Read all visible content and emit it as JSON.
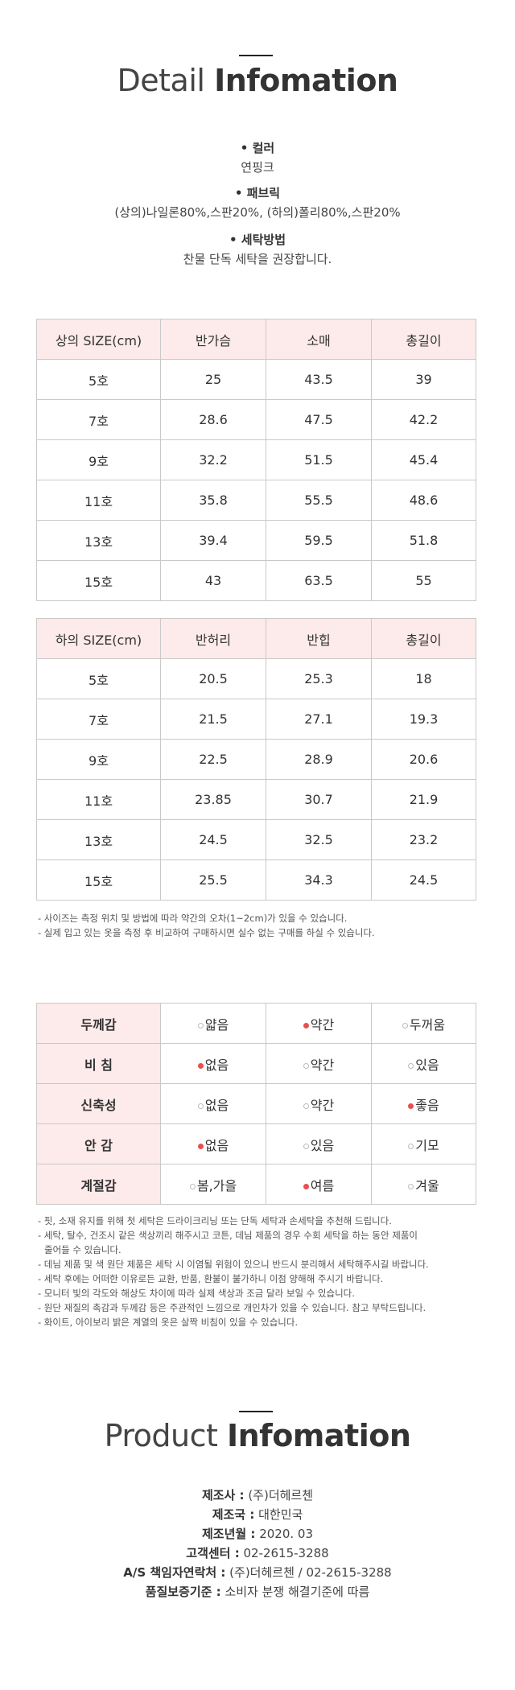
{
  "detail": {
    "title_light": "Detail",
    "title_bold": "Infomation",
    "info": [
      {
        "label": "• 컬러",
        "value": "연핑크"
      },
      {
        "label": "• 패브릭",
        "value": "(상의)나일론80%,스판20%, (하의)폴리80%,스판20%"
      },
      {
        "label": "• 세탁방법",
        "value": "찬물 단독 세탁을 권장합니다."
      }
    ]
  },
  "top_table": {
    "headers": [
      "상의 SIZE(cm)",
      "반가슴",
      "소매",
      "총길이"
    ],
    "rows": [
      [
        "5호",
        "25",
        "43.5",
        "39"
      ],
      [
        "7호",
        "28.6",
        "47.5",
        "42.2"
      ],
      [
        "9호",
        "32.2",
        "51.5",
        "45.4"
      ],
      [
        "11호",
        "35.8",
        "55.5",
        "48.6"
      ],
      [
        "13호",
        "39.4",
        "59.5",
        "51.8"
      ],
      [
        "15호",
        "43",
        "63.5",
        "55"
      ]
    ]
  },
  "bottom_table": {
    "headers": [
      "하의 SIZE(cm)",
      "반허리",
      "반힙",
      "총길이"
    ],
    "rows": [
      [
        "5호",
        "20.5",
        "25.3",
        "18"
      ],
      [
        "7호",
        "21.5",
        "27.1",
        "19.3"
      ],
      [
        "9호",
        "22.5",
        "28.9",
        "20.6"
      ],
      [
        "11호",
        "23.85",
        "30.7",
        "21.9"
      ],
      [
        "13호",
        "24.5",
        "32.5",
        "23.2"
      ],
      [
        "15호",
        "25.5",
        "34.3",
        "24.5"
      ]
    ]
  },
  "size_notes": [
    "- 사이즈는 측정 위치 및 방법에 따라 약간의 오차(1~2cm)가 있을 수 있습니다.",
    "- 실제 입고 있는 옷을 측정 후 비교하여 구매하시면 실수 없는 구매를 하실 수 있습니다."
  ],
  "feel_table": {
    "accent_color": "#e95050",
    "rows": [
      {
        "label": "두께감",
        "options": [
          "얇음",
          "약간",
          "두꺼움"
        ],
        "selected": 1
      },
      {
        "label": "비 침",
        "options": [
          "없음",
          "약간",
          "있음"
        ],
        "selected": 0
      },
      {
        "label": "신축성",
        "options": [
          "없음",
          "약간",
          "좋음"
        ],
        "selected": 2
      },
      {
        "label": "안 감",
        "options": [
          "없음",
          "있음",
          "기모"
        ],
        "selected": 0
      },
      {
        "label": "계절감",
        "options": [
          "봄,가을",
          "여름",
          "겨울"
        ],
        "selected": 1
      }
    ]
  },
  "care_notes": [
    "- 핏, 소재 유지를 위해 첫 세탁은 드라이크리닝 또는 단독 세탁과 손세탁을 추천해 드립니다.",
    "- 세탁, 탈수, 건조시 같은 색상끼리 해주시고 코튼, 데님 제품의 경우 수회 세탁을 하는 동안 제품이",
    "  줄어들 수 있습니다.",
    "- 데님 제품 및 색 원단 제품은 세탁 시 이염될 위험이 있으니 반드시 분리해서 세탁해주시길 바랍니다.",
    "- 세탁 후에는 어떠한 이유로든 교환, 반품, 환불이 불가하니 이점 양해해 주시기 바랍니다.",
    "- 모니터 빛의 각도와 해상도 차이에 따라 실제 색상과 조금 달라 보일 수 있습니다.",
    "- 원단 재질의 촉감과 두께감 등은 주관적인 느낌으로 개인차가 있을 수 있습니다. 참고 부탁드립니다.",
    "- 화이트, 아이보리 밝은 계열의 옷은 살짝 비침이 있을 수 있습니다."
  ],
  "product": {
    "title_light": "Product",
    "title_bold": "Infomation",
    "items": [
      {
        "label": "제조사 :",
        "value": " (주)더헤르첸"
      },
      {
        "label": "제조국 :",
        "value": " 대한민국"
      },
      {
        "label": "제조년월 :",
        "value": " 2020. 03"
      },
      {
        "label": "고객센터 :",
        "value": " 02-2615-3288"
      },
      {
        "label": "A/S 책임자연락처 :",
        "value": " (주)더헤르첸 / 02-2615-3288"
      },
      {
        "label": "품질보증기준 :",
        "value": " 소비자 분쟁 해결기준에 따름"
      }
    ]
  }
}
